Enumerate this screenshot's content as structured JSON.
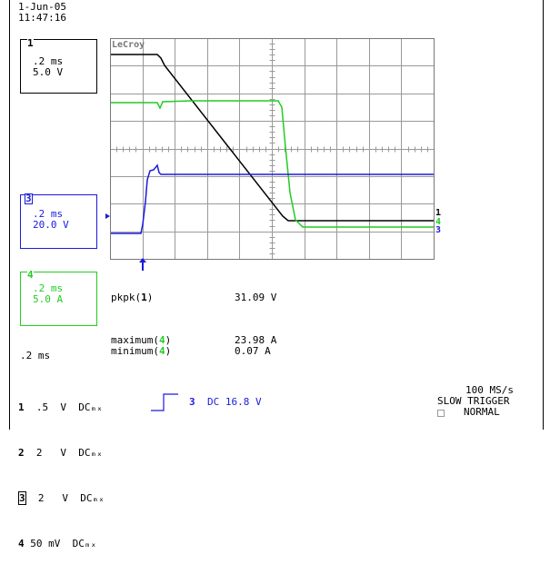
{
  "header": {
    "date": "1-Jun-05",
    "time": "11:47:16"
  },
  "logo": "LeCroy",
  "channels_left": [
    {
      "num": "1",
      "timebase": ".2 ms",
      "scale": "5.0 V",
      "color": "#000000"
    },
    {
      "num": "3",
      "timebase": ".2 ms",
      "scale": "20.0 V",
      "color": "#1a1adc"
    },
    {
      "num": "4",
      "timebase": ".2 ms",
      "scale": "5.0 A",
      "color": "#22cc22"
    }
  ],
  "measurements": {
    "pkpk_label": "pkpk(",
    "pkpk_ch": "1",
    "pkpk_close": ")",
    "pkpk_value": "31.09 V",
    "max_label": "maximum(",
    "max_ch": "4",
    "max_close": ")",
    "max_value": "23.98 A",
    "min_label": "minimum(",
    "min_ch": "4",
    "min_close": ")",
    "min_value": "0.07 A"
  },
  "timebase_bottom": ".2 ms",
  "channel_table": [
    {
      "num": "1",
      "volts": ".5",
      "unit": "V",
      "coupling": "DCₘₓ"
    },
    {
      "num": "2",
      "volts": "2",
      "unit": "V",
      "coupling": "DCₘₓ"
    },
    {
      "num": "3",
      "volts": "2",
      "unit": "V",
      "coupling": "DCₘₓ"
    },
    {
      "num": "4",
      "volts": "50",
      "unit": "mV",
      "coupling": "DCₘₓ"
    }
  ],
  "trigger": {
    "channel": "3",
    "text": "DC 16.8 V",
    "rate": "100 MS/s",
    "mode": "SLOW TRIGGER",
    "state": "NORMAL"
  },
  "trace_markers": {
    "right_1": "1",
    "right_4": "4",
    "right_3": "3"
  },
  "colors": {
    "ch1": "#000000",
    "ch3": "#1a1adc",
    "ch4": "#22cc22",
    "grid": "#999999"
  }
}
